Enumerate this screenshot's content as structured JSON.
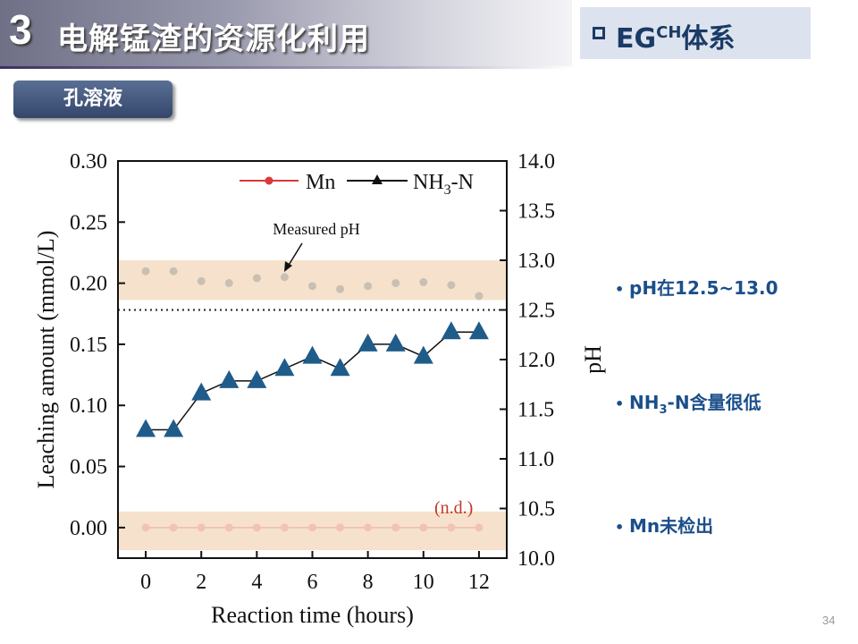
{
  "header": {
    "section_number": "3",
    "title": "电解锰渣的资源化利用",
    "system_label_main": "EG",
    "system_label_sup": "CH",
    "system_label_suffix": "体系"
  },
  "tag": {
    "label": "孔溶液"
  },
  "bullets": {
    "b1": "pH在12.5~13.0",
    "b2_pre": "NH",
    "b2_sub": "3",
    "b2_post": "-N含量很低",
    "b3": "Mn未检出",
    "dot": "•"
  },
  "page_number": "34",
  "colors": {
    "nh3": "#1f5c8a",
    "mn": "#d93a3a",
    "band": "#f6e2cc",
    "ph_points": "#c9c0b3"
  },
  "chart_data": {
    "type": "line",
    "xlabel": "Reaction time (hours)",
    "ylabel": "Leaching amount (mmol/L)",
    "y2label": "pH",
    "xlim": [
      -1,
      13
    ],
    "ylim": [
      -0.025,
      0.3
    ],
    "y2lim": [
      10.0,
      14.0
    ],
    "x_ticks": [
      0,
      2,
      4,
      6,
      8,
      10,
      12
    ],
    "y_ticks": [
      0.0,
      0.05,
      0.1,
      0.15,
      0.2,
      0.25,
      0.3
    ],
    "y2_ticks": [
      10.0,
      10.5,
      11.0,
      11.5,
      12.0,
      12.5,
      13.0,
      13.5,
      14.0
    ],
    "legend": {
      "mn": "Mn",
      "nh3_pre": "NH",
      "nh3_sub": "3",
      "nh3_post": "-N"
    },
    "annotations": {
      "measured_ph": "Measured pH",
      "nd": "(n.d.)"
    },
    "reference_line_ph": 12.5,
    "series": [
      {
        "name": "NH3-N",
        "x": [
          0,
          1,
          2,
          3,
          4,
          5,
          6,
          7,
          8,
          9,
          10,
          11,
          12
        ],
        "values": [
          0.08,
          0.08,
          0.11,
          0.12,
          0.12,
          0.13,
          0.14,
          0.13,
          0.15,
          0.15,
          0.14,
          0.16,
          0.16
        ]
      },
      {
        "name": "Mn",
        "x": [
          0,
          1,
          2,
          3,
          4,
          5,
          6,
          7,
          8,
          9,
          10,
          11,
          12
        ],
        "values": [
          0.0,
          0.0,
          0.0,
          0.0,
          0.0,
          0.0,
          0.0,
          0.0,
          0.0,
          0.0,
          0.0,
          0.0,
          0.0
        ]
      },
      {
        "name": "Measured pH",
        "axis": "right",
        "x": [
          0,
          1,
          2,
          3,
          4,
          5,
          6,
          7,
          8,
          9,
          10,
          11,
          12
        ],
        "values": [
          12.89,
          12.89,
          12.79,
          12.77,
          12.82,
          12.83,
          12.74,
          12.71,
          12.74,
          12.77,
          12.78,
          12.75,
          12.64
        ]
      }
    ],
    "bands_ph": [
      [
        12.6,
        13.0
      ],
      [
        10.08,
        10.47
      ]
    ]
  }
}
